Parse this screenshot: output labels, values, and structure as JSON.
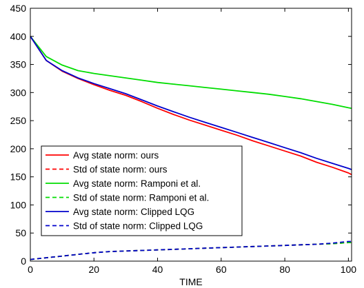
{
  "chart_data": {
    "type": "line",
    "title": "",
    "xlabel": "TIME",
    "ylabel": "",
    "xlim": [
      0,
      101
    ],
    "ylim": [
      0,
      450
    ],
    "xticks": [
      0,
      20,
      40,
      60,
      80,
      100
    ],
    "yticks": [
      0,
      50,
      100,
      150,
      200,
      250,
      300,
      350,
      400,
      450
    ],
    "grid": false,
    "legend_position": "lower-left",
    "x": [
      0,
      5,
      10,
      15,
      20,
      25,
      30,
      35,
      40,
      45,
      50,
      55,
      60,
      65,
      70,
      75,
      80,
      85,
      90,
      95,
      100,
      101
    ],
    "series": [
      {
        "name": "Avg state norm: ours",
        "color": "#ff0000",
        "dash": "solid",
        "values": [
          400,
          357,
          338,
          325,
          314,
          304,
          295,
          284,
          272,
          261,
          251,
          242,
          233,
          224,
          214,
          205,
          196,
          187,
          176,
          167,
          157,
          154
        ]
      },
      {
        "name": "Std of state norm: ours",
        "color": "#ff0000",
        "dash": "dashed",
        "values": [
          3,
          6,
          9,
          12,
          15,
          17,
          18,
          19,
          20,
          21,
          22,
          23,
          24,
          25,
          26,
          27,
          28,
          29,
          30,
          31,
          33,
          33
        ]
      },
      {
        "name": "Avg state norm: Ramponi et al.",
        "color": "#00dd00",
        "dash": "solid",
        "values": [
          400,
          364,
          349,
          339,
          334,
          330,
          326,
          322,
          318,
          315,
          312,
          309,
          306,
          303,
          300,
          297,
          293,
          289,
          284,
          279,
          273,
          272
        ]
      },
      {
        "name": "Std of state norm: Ramponi et al.",
        "color": "#00dd00",
        "dash": "dashed",
        "values": [
          3,
          6,
          9,
          12,
          15,
          17,
          18,
          19,
          20,
          21,
          22,
          23,
          24,
          25,
          26,
          27,
          28,
          29,
          30,
          31,
          33,
          33
        ]
      },
      {
        "name": "Avg state norm: Clipped LQG",
        "color": "#0000cc",
        "dash": "solid",
        "values": [
          400,
          357,
          339,
          326,
          316,
          307,
          298,
          287,
          276,
          266,
          256,
          247,
          238,
          229,
          220,
          211,
          202,
          193,
          183,
          174,
          165,
          163
        ]
      },
      {
        "name": "Std of state norm: Clipped LQG",
        "color": "#0000cc",
        "dash": "dashed",
        "values": [
          3,
          6,
          9,
          12,
          15,
          17,
          18,
          19,
          20,
          21,
          22,
          23,
          24,
          25,
          26,
          27,
          28,
          29,
          30,
          32,
          35,
          35
        ]
      }
    ]
  }
}
